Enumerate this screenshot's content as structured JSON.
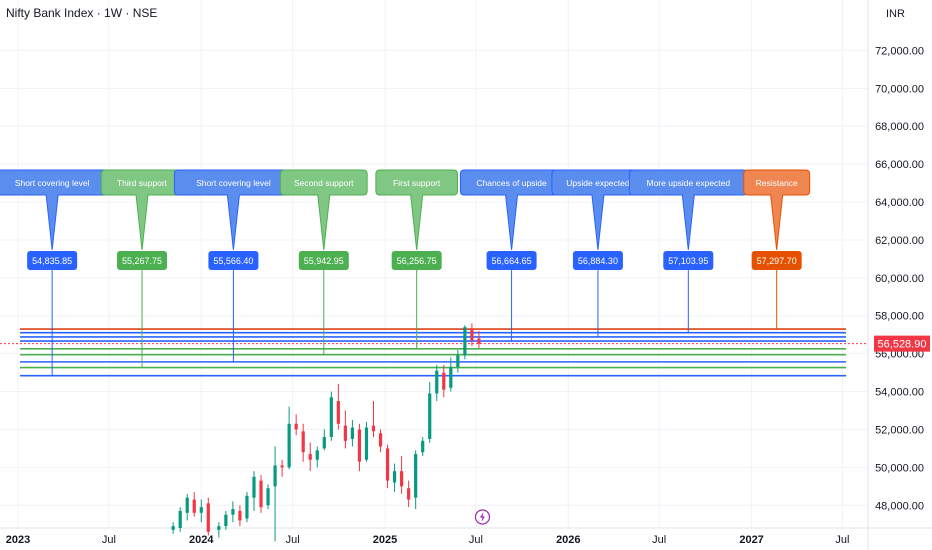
{
  "header": {
    "title": "Nifty Bank Index · 1W · NSE",
    "currency": "INR"
  },
  "colors": {
    "background": "#ffffff",
    "grid": "#f0f3fa",
    "up": "#089981",
    "down": "#f23645",
    "blue": "#2962ff",
    "green": "#4caf50",
    "orange": "#ef6c00",
    "red_line": "#d84315",
    "price_badge": "#f23645",
    "axis_text": "#131722",
    "event_icon": "#9c27b0"
  },
  "chart_data": {
    "type": "candlestick",
    "title": "Nifty Bank Index · 1W · NSE",
    "currency": "INR",
    "ylim": [
      46800,
      73500
    ],
    "xlim": [
      "2023-01-01",
      "2027-07-20"
    ],
    "grid": true,
    "y_ticks": [
      "48,000.00",
      "50,000.00",
      "52,000.00",
      "54,000.00",
      "56,000.00",
      "58,000.00",
      "60,000.00",
      "62,000.00",
      "64,000.00",
      "66,000.00",
      "68,000.00",
      "70,000.00",
      "72,000.00"
    ],
    "y_tick_values": [
      48000,
      50000,
      52000,
      54000,
      56000,
      58000,
      60000,
      62000,
      64000,
      66000,
      68000,
      70000,
      72000
    ],
    "x_ticks": [
      {
        "label": "2023",
        "date": "2023-01-01",
        "bold": true
      },
      {
        "label": "Jul",
        "date": "2023-07-01",
        "bold": false
      },
      {
        "label": "2024",
        "date": "2024-01-01",
        "bold": true
      },
      {
        "label": "Jul",
        "date": "2024-07-01",
        "bold": false
      },
      {
        "label": "2025",
        "date": "2025-01-01",
        "bold": true
      },
      {
        "label": "Jul",
        "date": "2025-07-01",
        "bold": false
      },
      {
        "label": "2026",
        "date": "2026-01-01",
        "bold": true
      },
      {
        "label": "Jul",
        "date": "2026-07-01",
        "bold": false
      },
      {
        "label": "2027",
        "date": "2027-01-01",
        "bold": true
      },
      {
        "label": "Jul",
        "date": "2027-07-01",
        "bold": false
      }
    ],
    "last_price": 56528.9,
    "last_price_label": "56,528.90",
    "levels": [
      {
        "label": "Short covering level",
        "value": 54835.85,
        "value_label": "54,835.85",
        "color": "blue",
        "date": "2023-03-10"
      },
      {
        "label": "Third support",
        "value": 55267.75,
        "value_label": "55,267.75",
        "color": "green",
        "date": "2023-09-05"
      },
      {
        "label": "Short covering level",
        "value": 55566.4,
        "value_label": "55,566.40",
        "color": "blue",
        "date": "2024-03-05"
      },
      {
        "label": "Second support",
        "value": 55942.95,
        "value_label": "55,942.95",
        "color": "green",
        "date": "2024-09-01"
      },
      {
        "label": "First support",
        "value": 56256.75,
        "value_label": "56,256.75",
        "color": "green",
        "date": "2025-03-05"
      },
      {
        "label": "Chances of upside",
        "value": 56664.65,
        "value_label": "56,664.65",
        "color": "blue",
        "date": "2025-09-10"
      },
      {
        "label": "Upside expected",
        "value": 56884.3,
        "value_label": "56,884.30",
        "color": "blue",
        "date": "2026-03-01"
      },
      {
        "label": "More upside expected",
        "value": 57103.95,
        "value_label": "57,103.95",
        "color": "blue",
        "date": "2026-08-28"
      },
      {
        "label": "Resistance",
        "value": 57297.7,
        "value_label": "57,297.70",
        "color": "orange",
        "date": "2027-02-20"
      }
    ],
    "candles": [
      {
        "date": "2023-11-06",
        "open": 46700,
        "high": 47100,
        "low": 46500,
        "close": 46900
      },
      {
        "date": "2023-11-20",
        "open": 46800,
        "high": 47900,
        "low": 46600,
        "close": 47700
      },
      {
        "date": "2023-12-04",
        "open": 47600,
        "high": 48600,
        "low": 47200,
        "close": 48400
      },
      {
        "date": "2023-12-18",
        "open": 48300,
        "high": 48700,
        "low": 47400,
        "close": 47600
      },
      {
        "date": "2024-01-01",
        "open": 47600,
        "high": 48300,
        "low": 47100,
        "close": 47900
      },
      {
        "date": "2024-01-15",
        "open": 48100,
        "high": 48400,
        "low": 46400,
        "close": 46600
      },
      {
        "date": "2024-02-05",
        "open": 46700,
        "high": 47100,
        "low": 46300,
        "close": 46900
      },
      {
        "date": "2024-02-19",
        "open": 46900,
        "high": 47700,
        "low": 46700,
        "close": 47500
      },
      {
        "date": "2024-03-04",
        "open": 47500,
        "high": 48200,
        "low": 47100,
        "close": 47800
      },
      {
        "date": "2024-03-18",
        "open": 47700,
        "high": 48000,
        "low": 46900,
        "close": 47200
      },
      {
        "date": "2024-04-01",
        "open": 47300,
        "high": 48700,
        "low": 47100,
        "close": 48500
      },
      {
        "date": "2024-04-15",
        "open": 48400,
        "high": 49800,
        "low": 47700,
        "close": 49500
      },
      {
        "date": "2024-04-29",
        "open": 49300,
        "high": 49600,
        "low": 47600,
        "close": 47900
      },
      {
        "date": "2024-05-13",
        "open": 48000,
        "high": 49100,
        "low": 47800,
        "close": 48900
      },
      {
        "date": "2024-05-27",
        "open": 49000,
        "high": 51100,
        "low": 46100,
        "close": 50100
      },
      {
        "date": "2024-06-10",
        "open": 50100,
        "high": 50400,
        "low": 49500,
        "close": 50000
      },
      {
        "date": "2024-06-24",
        "open": 50000,
        "high": 53200,
        "low": 49900,
        "close": 52300
      },
      {
        "date": "2024-07-08",
        "open": 52300,
        "high": 52800,
        "low": 51700,
        "close": 52000
      },
      {
        "date": "2024-07-22",
        "open": 51900,
        "high": 52300,
        "low": 50300,
        "close": 50800
      },
      {
        "date": "2024-08-05",
        "open": 50700,
        "high": 51300,
        "low": 49800,
        "close": 50400
      },
      {
        "date": "2024-08-19",
        "open": 50400,
        "high": 51100,
        "low": 50000,
        "close": 50900
      },
      {
        "date": "2024-09-02",
        "open": 51000,
        "high": 52000,
        "low": 50900,
        "close": 51600
      },
      {
        "date": "2024-09-16",
        "open": 51600,
        "high": 54000,
        "low": 51400,
        "close": 53700
      },
      {
        "date": "2024-09-30",
        "open": 53500,
        "high": 54400,
        "low": 52000,
        "close": 52300
      },
      {
        "date": "2024-10-14",
        "open": 52200,
        "high": 53000,
        "low": 51000,
        "close": 51400
      },
      {
        "date": "2024-10-28",
        "open": 51500,
        "high": 52500,
        "low": 51100,
        "close": 52100
      },
      {
        "date": "2024-11-11",
        "open": 52000,
        "high": 52300,
        "low": 49800,
        "close": 50300
      },
      {
        "date": "2024-11-25",
        "open": 50400,
        "high": 52400,
        "low": 50300,
        "close": 52100
      },
      {
        "date": "2024-12-09",
        "open": 52200,
        "high": 53500,
        "low": 51600,
        "close": 51900
      },
      {
        "date": "2024-12-23",
        "open": 51800,
        "high": 52000,
        "low": 50800,
        "close": 51100
      },
      {
        "date": "2025-01-06",
        "open": 51000,
        "high": 51200,
        "low": 48900,
        "close": 49300
      },
      {
        "date": "2025-01-20",
        "open": 49200,
        "high": 50200,
        "low": 48700,
        "close": 49800
      },
      {
        "date": "2025-02-03",
        "open": 49800,
        "high": 50600,
        "low": 48600,
        "close": 49000
      },
      {
        "date": "2025-02-17",
        "open": 48900,
        "high": 49300,
        "low": 47900,
        "close": 48300
      },
      {
        "date": "2025-03-03",
        "open": 48400,
        "high": 50900,
        "low": 47800,
        "close": 50700
      },
      {
        "date": "2025-03-17",
        "open": 50800,
        "high": 51600,
        "low": 50600,
        "close": 51400
      },
      {
        "date": "2025-03-31",
        "open": 51500,
        "high": 54500,
        "low": 51300,
        "close": 53900
      },
      {
        "date": "2025-04-14",
        "open": 53900,
        "high": 55400,
        "low": 53500,
        "close": 55100
      },
      {
        "date": "2025-04-28",
        "open": 55000,
        "high": 55400,
        "low": 53700,
        "close": 54100
      },
      {
        "date": "2025-05-12",
        "open": 54200,
        "high": 55800,
        "low": 54000,
        "close": 55300
      },
      {
        "date": "2025-05-26",
        "open": 55300,
        "high": 56200,
        "low": 55000,
        "close": 55900
      },
      {
        "date": "2025-06-09",
        "open": 55900,
        "high": 57500,
        "low": 55700,
        "close": 57400
      },
      {
        "date": "2025-06-23",
        "open": 57300,
        "high": 57600,
        "low": 56400,
        "close": 56700
      },
      {
        "date": "2025-07-07",
        "open": 56800,
        "high": 57200,
        "low": 56300,
        "close": 56528.9
      }
    ],
    "event_marker": {
      "date": "2025-07-14",
      "icon": "lightning-icon"
    }
  }
}
